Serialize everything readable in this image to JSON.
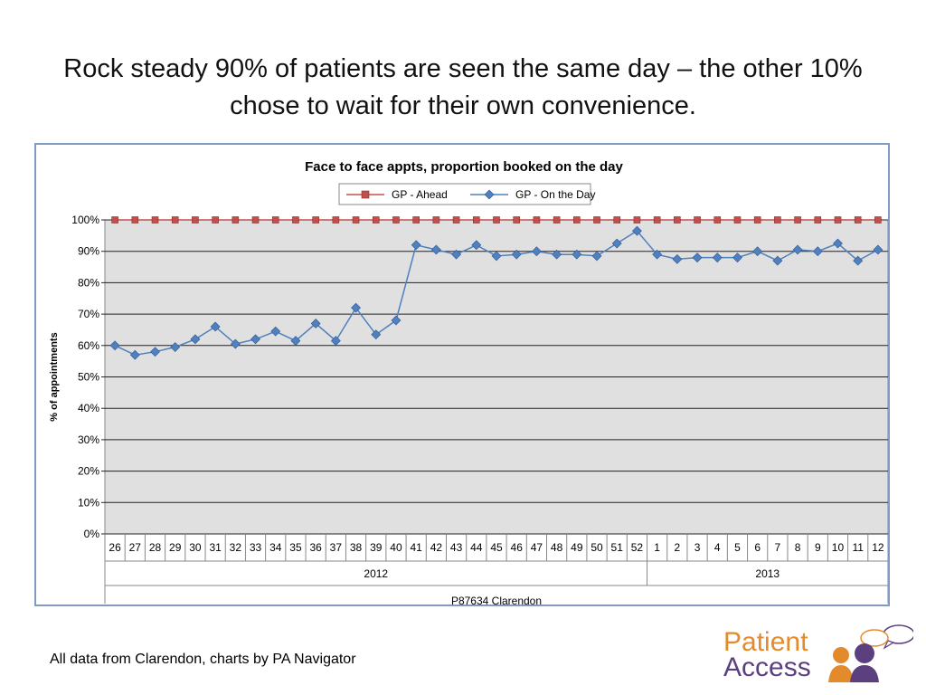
{
  "slide": {
    "title": "Rock steady 90% of patients are seen the same day – the other 10% chose to wait for their own convenience.",
    "footer": "All data from Clarendon, charts by PA Navigator"
  },
  "logo": {
    "line1": "Patient",
    "line2": "Access"
  },
  "colors": {
    "ahead": "#c0504d",
    "on_the_day": "#4f81bd",
    "plot_bg": "#e0e0e0",
    "logo_orange": "#e38b2c",
    "logo_purple": "#5b3f7e"
  },
  "chart_data": {
    "type": "line",
    "title": "Face to face appts, proportion booked on the day",
    "ylabel": "% of appointments",
    "ylim": [
      0,
      100
    ],
    "yticks": [
      "0%",
      "10%",
      "20%",
      "30%",
      "40%",
      "50%",
      "60%",
      "70%",
      "80%",
      "90%",
      "100%"
    ],
    "grid": true,
    "legend": "top",
    "categories": [
      "26",
      "27",
      "28",
      "29",
      "30",
      "31",
      "32",
      "33",
      "34",
      "35",
      "36",
      "37",
      "38",
      "39",
      "40",
      "41",
      "42",
      "43",
      "44",
      "45",
      "46",
      "47",
      "48",
      "49",
      "50",
      "51",
      "52",
      "1",
      "2",
      "3",
      "4",
      "5",
      "6",
      "7",
      "8",
      "9",
      "10",
      "11",
      "12"
    ],
    "years": [
      {
        "label": "2012",
        "count": 27
      },
      {
        "label": "2013",
        "count": 12
      }
    ],
    "group_label": "P87634 Clarendon",
    "series": [
      {
        "name": "GP - Ahead",
        "marker": "square",
        "values": [
          100,
          100,
          100,
          100,
          100,
          100,
          100,
          100,
          100,
          100,
          100,
          100,
          100,
          100,
          100,
          100,
          100,
          100,
          100,
          100,
          100,
          100,
          100,
          100,
          100,
          100,
          100,
          100,
          100,
          100,
          100,
          100,
          100,
          100,
          100,
          100,
          100,
          100,
          100
        ]
      },
      {
        "name": "GP - On the Day",
        "marker": "diamond",
        "values": [
          60,
          57,
          58,
          59.5,
          62,
          66,
          60.5,
          62,
          64.5,
          61.5,
          67,
          61.5,
          72,
          63.5,
          68,
          92,
          90.5,
          89,
          92,
          88.5,
          89,
          90,
          89,
          89,
          88.5,
          92.5,
          96.5,
          89,
          87.5,
          88,
          88,
          88,
          90,
          87,
          90.5,
          90,
          92.5,
          87,
          90.5
        ]
      }
    ]
  }
}
